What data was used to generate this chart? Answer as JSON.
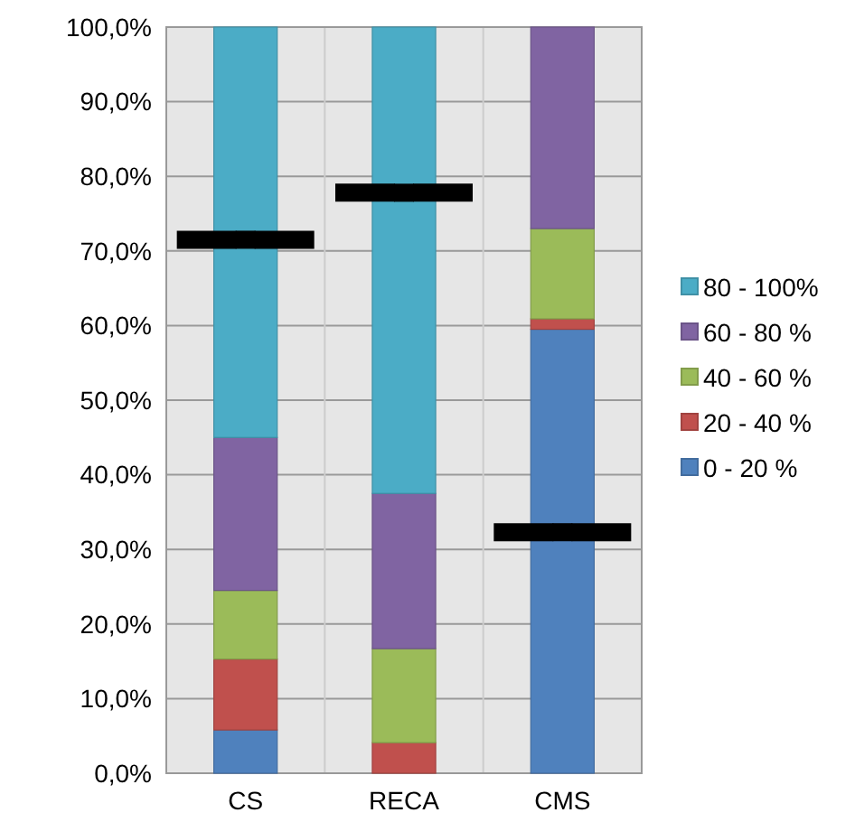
{
  "chart_data": {
    "type": "bar",
    "stacked": true,
    "categories": [
      "CS",
      "RECA",
      "CMS"
    ],
    "series": [
      {
        "name": "0 - 20 %",
        "color": "#4f81bd",
        "values": [
          5.8,
          0,
          59.5
        ]
      },
      {
        "name": "20 - 40 %",
        "color": "#c0504d",
        "values": [
          9.5,
          4.1,
          1.4
        ]
      },
      {
        "name": "40 - 60 %",
        "color": "#9bbb59",
        "values": [
          9.2,
          12.6,
          12.1
        ]
      },
      {
        "name": "60 - 80 %",
        "color": "#8064a2",
        "values": [
          20.5,
          20.8,
          27.0
        ]
      },
      {
        "name": "80 - 100%",
        "color": "#4bacc6",
        "values": [
          55.0,
          62.5,
          0
        ]
      },
      {
        "type": "scatter",
        "color": "#000000",
        "x": [
          "CS",
          "RECA",
          "CMS"
        ],
        "values": [
          71.5,
          77.8,
          32.3
        ]
      }
    ],
    "ylim": [
      0,
      100
    ],
    "yticks": [
      {
        "value": 0,
        "label": "0,0%"
      },
      {
        "value": 10,
        "label": "10,0%"
      },
      {
        "value": 20,
        "label": "20,0%"
      },
      {
        "value": 30,
        "label": "30,0%"
      },
      {
        "value": 40,
        "label": "40,0%"
      },
      {
        "value": 50,
        "label": "50,0%"
      },
      {
        "value": 60,
        "label": "60,0%"
      },
      {
        "value": 70,
        "label": "70,0%"
      },
      {
        "value": 80,
        "label": "80,0%"
      },
      {
        "value": 90,
        "label": "90,0%"
      },
      {
        "value": 100,
        "label": "100,0%"
      }
    ],
    "grid": "y",
    "legend": "right"
  }
}
